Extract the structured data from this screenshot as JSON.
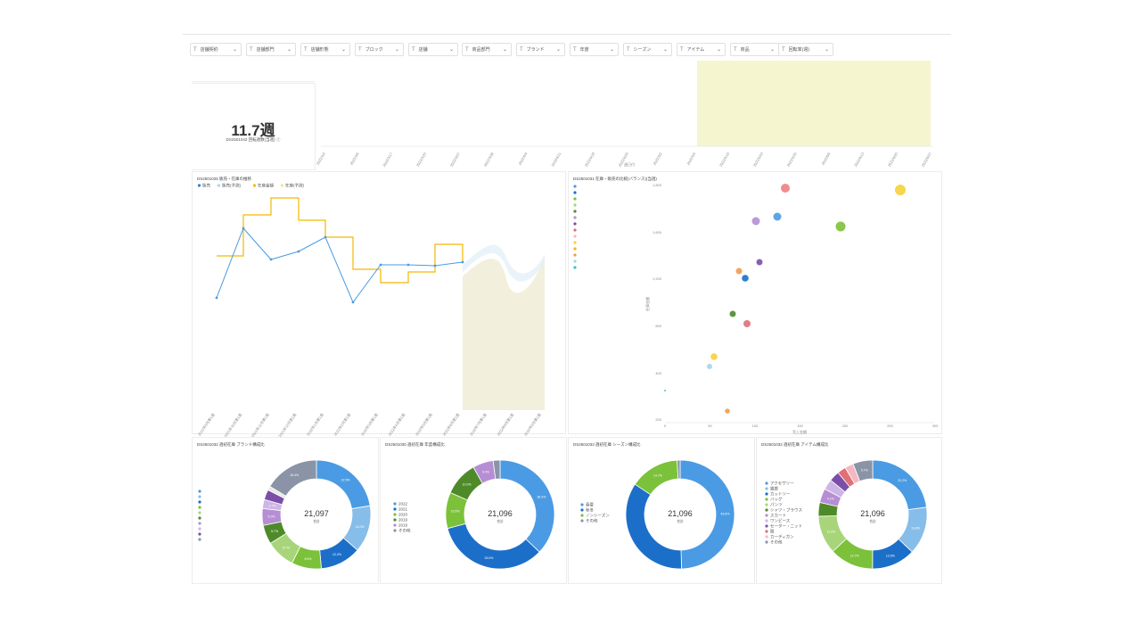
{
  "filters": [
    {
      "label": "店舗契約"
    },
    {
      "label": "店舗部門"
    },
    {
      "label": "店舗形態"
    },
    {
      "label": "ブロック"
    },
    {
      "label": "店舗"
    },
    {
      "label": "商品部門"
    },
    {
      "label": "ブランド"
    },
    {
      "label": "年度"
    },
    {
      "label": "シーズン"
    },
    {
      "label": "アイテム"
    },
    {
      "label": "商品"
    },
    {
      "label": "回転率(週)"
    }
  ],
  "kpi": {
    "value": "11.7週",
    "subtitle": "DS2501042 回転週数(当週)"
  },
  "timeline": {
    "xlabel": "週日付",
    "ticks": [
      "2022/3/2",
      "2022/3/6",
      "2022/3/17",
      "2022/3/22",
      "2022/3/27",
      "2022/3/28",
      "2022/4/4",
      "2022/4/11",
      "2022/4/18",
      "2022/4/25",
      "2022/5/2",
      "2022/5/9",
      "2022/5/16",
      "2022/5/23",
      "2022/5/30",
      "2022/6/6",
      "2022/6/13",
      "2022/6/20",
      "2022/6/27"
    ],
    "highlight_color": "#f5f5d0"
  },
  "line_chart": {
    "title": "DS2501025 販売・在庫の推移",
    "legend": [
      "販売",
      "販売(予測)",
      "在庫金額",
      "在庫(予測)"
    ],
    "legend_colors": [
      "#2f7ed8",
      "#a6d3ef",
      "#f5b800",
      "#f8e08e"
    ],
    "xticks": [
      "2021年9月第1週",
      "2021年10月第1週",
      "2021年11月第1週",
      "2021年12月第1週",
      "2022年1月第1週",
      "2022年2月第1週",
      "2022年3月第1週",
      "2022年4月第1週",
      "2022年5月第1週",
      "2022年6月第1週",
      "2022年7月第1週",
      "2022年8月第1週",
      "2022年9月第1週"
    ]
  },
  "scatter": {
    "title": "DS2501031 在庫・販売の比較(バランス)(当週)",
    "xlabel": "売上金額",
    "ylabel": "在庫金額",
    "yticks": [
      "1,800",
      "1,600",
      "1,200",
      "800",
      "400",
      "200"
    ],
    "xticks": [
      "0",
      "50",
      "100",
      "150",
      "200",
      "250",
      "300"
    ]
  },
  "donuts": [
    {
      "title": "DS2501032 週初在庫 ブランド構成比",
      "total": "21,097",
      "sub": "合計",
      "segments": [
        {
          "pct": "22.5%",
          "v": 22.5,
          "c": "#4a9be3"
        },
        {
          "pct": "14.0%",
          "v": 14.0,
          "c": "#86bde9"
        },
        {
          "pct": "12.2%",
          "v": 12.2,
          "c": "#1c6fc9"
        },
        {
          "pct": "8.9%",
          "v": 8.9,
          "c": "#7cc13a"
        },
        {
          "pct": "8.7%",
          "v": 8.7,
          "c": "#a8d57a"
        },
        {
          "pct": "5.7%",
          "v": 5.7,
          "c": "#4f8a2a"
        },
        {
          "pct": "5.0%",
          "v": 5.0,
          "c": "#b58ed4"
        },
        {
          "pct": "2.7%",
          "v": 2.7,
          "c": "#cdb5e5"
        },
        {
          "pct": "",
          "v": 3.0,
          "c": "#7b4fa8"
        },
        {
          "pct": "",
          "v": 1.2,
          "c": "#e8e8e8"
        },
        {
          "pct": "16.4%",
          "v": 16.4,
          "c": "#8a94a6"
        }
      ],
      "legend": [
        "",
        "",
        "",
        "",
        "",
        "",
        "",
        "",
        "",
        ""
      ],
      "legend_colors": [
        "#4a9be3",
        "#86bde9",
        "#1c6fc9",
        "#7cc13a",
        "#a8d57a",
        "#4f8a2a",
        "#b58ed4",
        "#cdb5e5",
        "#7b4fa8",
        "#8a94a6"
      ]
    },
    {
      "title": "DS2501030 週初在庫 年度構成比",
      "total": "21,096",
      "sub": "合計",
      "segments": [
        {
          "pct": "36.3%",
          "v": 36.3,
          "c": "#4a9be3"
        },
        {
          "pct": "33.0%",
          "v": 33.0,
          "c": "#1c6fc9"
        },
        {
          "pct": "10.5%",
          "v": 10.5,
          "c": "#7cc13a"
        },
        {
          "pct": "10.0%",
          "v": 10.0,
          "c": "#4f8a2a"
        },
        {
          "pct": "6.0%",
          "v": 6.0,
          "c": "#b58ed4"
        },
        {
          "pct": "",
          "v": 2.0,
          "c": "#8a94a6"
        }
      ],
      "legend": [
        "2022",
        "2021",
        "2020",
        "2019",
        "2019",
        "その他"
      ],
      "legend_colors": [
        "#4a9be3",
        "#1c6fc9",
        "#7cc13a",
        "#4f8a2a",
        "#b58ed4",
        "#8a94a6"
      ]
    },
    {
      "title": "DS2501033 週初在庫 シーズン構成比",
      "total": "21,096",
      "sub": "合計",
      "segments": [
        {
          "pct": "49.6%",
          "v": 49.6,
          "c": "#4a9be3"
        },
        {
          "pct": "",
          "v": 34.8,
          "c": "#1c6fc9"
        },
        {
          "pct": "14.7%",
          "v": 14.7,
          "c": "#7cc13a"
        },
        {
          "pct": "",
          "v": 0.9,
          "c": "#8a94a6"
        }
      ],
      "legend": [
        "春夏",
        "秋冬",
        "ノンシーズン",
        "その他"
      ],
      "legend_colors": [
        "#4a9be3",
        "#1c6fc9",
        "#7cc13a",
        "#8a94a6"
      ]
    },
    {
      "title": "DS2501032 週初在庫 アイテム構成比",
      "total": "21,096",
      "sub": "合計",
      "segments": [
        {
          "pct": "22.2%",
          "v": 22.2,
          "c": "#4a9be3"
        },
        {
          "pct": "13.8%",
          "v": 13.8,
          "c": "#86bde9"
        },
        {
          "pct": "12.6%",
          "v": 12.6,
          "c": "#1c6fc9"
        },
        {
          "pct": "12.7%",
          "v": 12.7,
          "c": "#7cc13a"
        },
        {
          "pct": "11.0%",
          "v": 11.0,
          "c": "#a8d57a"
        },
        {
          "pct": "",
          "v": 4.0,
          "c": "#4f8a2a"
        },
        {
          "pct": "4.1%",
          "v": 4.1,
          "c": "#b58ed4"
        },
        {
          "pct": "",
          "v": 3.0,
          "c": "#cdb5e5"
        },
        {
          "pct": "",
          "v": 3.0,
          "c": "#7b4fa8"
        },
        {
          "pct": "",
          "v": 2.5,
          "c": "#e06f78"
        },
        {
          "pct": "",
          "v": 2.5,
          "c": "#f4b8c0"
        },
        {
          "pct": "5.7%",
          "v": 5.7,
          "c": "#8a94a6"
        }
      ],
      "legend": [
        "アクセサリー",
        "雑貨",
        "カットソー",
        "バッグ",
        "パンツ",
        "シャツ・ブラウス",
        "スカート",
        "ワンピース",
        "セーター・ニット",
        "靴",
        "カーディガン",
        "その他"
      ],
      "legend_colors": [
        "#4a9be3",
        "#86bde9",
        "#1c6fc9",
        "#7cc13a",
        "#a8d57a",
        "#4f8a2a",
        "#b58ed4",
        "#cdb5e5",
        "#7b4fa8",
        "#e06f78",
        "#f4b8c0",
        "#8a94a6"
      ]
    }
  ]
}
